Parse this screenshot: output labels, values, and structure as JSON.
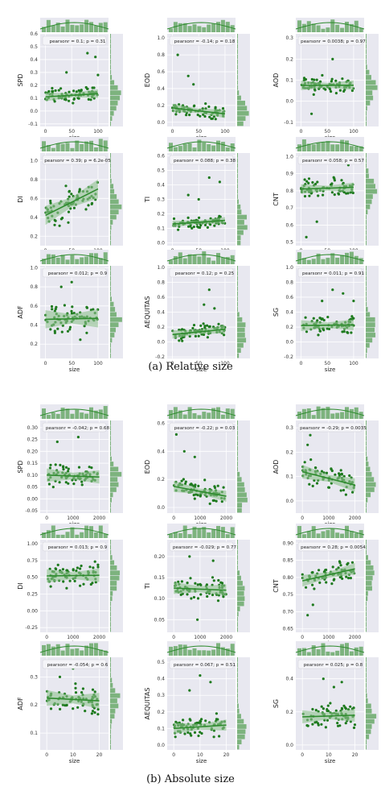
{
  "captions": {
    "a": "(a) Relative size",
    "b": "(b) Absolute size"
  },
  "colors": {
    "panel_bg": "#e8e8f0",
    "grid": "#ffffff",
    "point": "#1e7a1e",
    "line": "#2e8b2e",
    "band": "#90c290",
    "hist": "#6aa96a"
  },
  "chart_data": [
    {
      "type": "scatter",
      "group": "a",
      "ylabel": "SPD",
      "xlabel": "size",
      "legend": "pearsonr = 0.1; p = 0.31",
      "xlim": [
        -10,
        120
      ],
      "ylim": [
        -0.12,
        0.6
      ],
      "xticks": [
        0,
        50,
        100
      ],
      "yticks": [
        -0.1,
        0.0,
        0.1,
        0.2,
        0.3,
        0.4,
        0.5,
        0.6
      ],
      "ytick_labels": [
        "-0.1",
        "0.0",
        "0.1",
        "0.2",
        "0.3",
        "0.4",
        "0.5",
        "0.6"
      ],
      "fit": [
        0.11,
        0.135
      ],
      "ymean": 0.12,
      "yspread": 0.06,
      "outliers": [
        [
          80,
          0.45
        ],
        [
          95,
          0.42
        ],
        [
          40,
          0.3
        ],
        [
          100,
          0.28
        ]
      ]
    },
    {
      "type": "scatter",
      "group": "a",
      "ylabel": "EOD",
      "xlabel": "size",
      "legend": "pearsonr = -0.14; p = 0.18",
      "xlim": [
        -10,
        120
      ],
      "ylim": [
        -0.05,
        1.05
      ],
      "xticks": [
        0,
        50,
        100
      ],
      "yticks": [
        0.0,
        0.2,
        0.4,
        0.6,
        0.8,
        1.0
      ],
      "ytick_labels": [
        "0.0",
        "0.2",
        "0.4",
        "0.6",
        "0.8",
        "1.0"
      ],
      "fit": [
        0.17,
        0.1
      ],
      "ymean": 0.13,
      "yspread": 0.09,
      "outliers": [
        [
          5,
          1.0
        ],
        [
          10,
          0.8
        ],
        [
          30,
          0.55
        ],
        [
          40,
          0.45
        ]
      ]
    },
    {
      "type": "scatter",
      "group": "a",
      "ylabel": "AOD",
      "xlabel": "size",
      "legend": "pearsonr = 0.0038; p = 0.97",
      "xlim": [
        -10,
        120
      ],
      "ylim": [
        -0.12,
        0.32
      ],
      "xticks": [
        0,
        50,
        100
      ],
      "yticks": [
        -0.1,
        0.0,
        0.1,
        0.2,
        0.3
      ],
      "ytick_labels": [
        "-0.1",
        "0.0",
        "0.1",
        "0.2",
        "0.3"
      ],
      "fit": [
        0.075,
        0.076
      ],
      "ymean": 0.075,
      "yspread": 0.04,
      "outliers": [
        [
          60,
          0.2
        ],
        [
          20,
          -0.06
        ]
      ]
    },
    {
      "type": "scatter",
      "group": "a",
      "ylabel": "DI",
      "xlabel": "size",
      "legend": "pearsonr = 0.39; p = 6.2e-05",
      "xlim": [
        -10,
        120
      ],
      "ylim": [
        0.1,
        1.08
      ],
      "xticks": [
        0,
        50,
        100
      ],
      "yticks": [
        0.2,
        0.4,
        0.6,
        0.8,
        1.0
      ],
      "ytick_labels": [
        "0.2",
        "0.4",
        "0.6",
        "0.8",
        "1.0"
      ],
      "fit": [
        0.42,
        0.7
      ],
      "ymean": 0.56,
      "yspread": 0.18,
      "outliers": [
        [
          60,
          1.0
        ],
        [
          80,
          1.0
        ],
        [
          90,
          0.98
        ]
      ]
    },
    {
      "type": "scatter",
      "group": "a",
      "ylabel": "TI",
      "xlabel": "size",
      "legend": "pearsonr = 0.088; p = 0.38",
      "xlim": [
        -10,
        120
      ],
      "ylim": [
        -0.02,
        0.62
      ],
      "xticks": [
        0,
        50,
        100
      ],
      "yticks": [
        0.0,
        0.1,
        0.2,
        0.3,
        0.4,
        0.5,
        0.6
      ],
      "ytick_labels": [
        "0.0",
        "0.1",
        "0.2",
        "0.3",
        "0.4",
        "0.5",
        "0.6"
      ],
      "fit": [
        0.13,
        0.155
      ],
      "ymean": 0.14,
      "yspread": 0.04,
      "outliers": [
        [
          70,
          0.45
        ],
        [
          90,
          0.42
        ],
        [
          30,
          0.33
        ],
        [
          50,
          0.3
        ]
      ]
    },
    {
      "type": "scatter",
      "group": "a",
      "ylabel": "CNT",
      "xlabel": "size",
      "legend": "pearsonr = 0.058; p = 0.57",
      "xlim": [
        -10,
        120
      ],
      "ylim": [
        0.48,
        1.02
      ],
      "xticks": [
        0,
        50,
        100
      ],
      "yticks": [
        0.5,
        0.6,
        0.7,
        0.8,
        0.9,
        1.0
      ],
      "ytick_labels": [
        "0.5",
        "0.6",
        "0.7",
        "0.8",
        "0.9",
        "1.0"
      ],
      "fit": [
        0.81,
        0.82
      ],
      "ymean": 0.815,
      "yspread": 0.05,
      "outliers": [
        [
          10,
          0.53
        ],
        [
          30,
          0.62
        ],
        [
          90,
          0.95
        ]
      ]
    },
    {
      "type": "scatter",
      "group": "a",
      "ylabel": "ADF",
      "xlabel": "size",
      "legend": "pearsonr = 0.012; p = 0.9",
      "xlim": [
        -10,
        120
      ],
      "ylim": [
        0.05,
        1.02
      ],
      "xticks": [
        0,
        50,
        100
      ],
      "yticks": [
        0.2,
        0.4,
        0.6,
        0.8,
        1.0
      ],
      "ytick_labels": [
        "0.2",
        "0.4",
        "0.6",
        "0.8",
        "1.0"
      ],
      "fit": [
        0.46,
        0.47
      ],
      "ymean": 0.47,
      "yspread": 0.17,
      "outliers": [
        [
          50,
          0.85
        ],
        [
          30,
          0.8
        ]
      ]
    },
    {
      "type": "scatter",
      "group": "a",
      "ylabel": "AEQUITAS",
      "xlabel": "size",
      "legend": "pearsonr = 0.12; p = 0.25",
      "xlim": [
        -10,
        120
      ],
      "ylim": [
        -0.22,
        1.02
      ],
      "xticks": [
        0,
        50,
        100
      ],
      "yticks": [
        -0.2,
        0.0,
        0.2,
        0.4,
        0.6,
        0.8,
        1.0
      ],
      "ytick_labels": [
        "-0.2",
        "0.0",
        "0.2",
        "0.4",
        "0.6",
        "0.8",
        "1.0"
      ],
      "fit": [
        0.1,
        0.17
      ],
      "ymean": 0.13,
      "yspread": 0.1,
      "outliers": [
        [
          70,
          0.7
        ],
        [
          60,
          0.5
        ],
        [
          80,
          0.45
        ]
      ]
    },
    {
      "type": "scatter",
      "group": "a",
      "ylabel": "SG",
      "xlabel": "size",
      "legend": "pearsonr = 0.011; p = 0.91",
      "xlim": [
        -10,
        120
      ],
      "ylim": [
        -0.22,
        1.02
      ],
      "xticks": [
        0,
        50,
        100
      ],
      "yticks": [
        -0.2,
        0.0,
        0.2,
        0.4,
        0.6,
        0.8,
        1.0
      ],
      "ytick_labels": [
        "-0.2",
        "0.0",
        "0.2",
        "0.4",
        "0.6",
        "0.8",
        "1.0"
      ],
      "fit": [
        0.22,
        0.23
      ],
      "ymean": 0.22,
      "yspread": 0.13,
      "outliers": [
        [
          60,
          0.7
        ],
        [
          80,
          0.65
        ],
        [
          40,
          0.55
        ],
        [
          100,
          0.55
        ]
      ]
    },
    {
      "type": "scatter",
      "group": "b",
      "ylabel": "SPD",
      "xlabel": "size",
      "legend": "pearsonr = -0.042; p = 0.68",
      "xlim": [
        -250,
        2350
      ],
      "ylim": [
        -0.06,
        0.33
      ],
      "xticks": [
        0,
        1000,
        2000
      ],
      "yticks": [
        -0.05,
        0.0,
        0.05,
        0.1,
        0.15,
        0.2,
        0.25,
        0.3
      ],
      "ytick_labels": [
        "-0.05",
        "0.00",
        "0.05",
        "0.10",
        "0.15",
        "0.20",
        "0.25",
        "0.30"
      ],
      "fit": [
        0.1,
        0.092
      ],
      "ymean": 0.095,
      "yspread": 0.05,
      "outliers": [
        [
          1200,
          0.26
        ],
        [
          400,
          0.24
        ]
      ]
    },
    {
      "type": "scatter",
      "group": "b",
      "ylabel": "EOD",
      "xlabel": "size",
      "legend": "pearsonr = -0.22; p = 0.03",
      "xlim": [
        -250,
        2350
      ],
      "ylim": [
        -0.04,
        0.62
      ],
      "xticks": [
        0,
        1000,
        2000
      ],
      "yticks": [
        0.0,
        0.2,
        0.4,
        0.6
      ],
      "ytick_labels": [
        "0.0",
        "0.2",
        "0.4",
        "0.6"
      ],
      "fit": [
        0.15,
        0.08
      ],
      "ymean": 0.11,
      "yspread": 0.07,
      "outliers": [
        [
          100,
          0.52
        ],
        [
          400,
          0.4
        ],
        [
          800,
          0.36
        ]
      ]
    },
    {
      "type": "scatter",
      "group": "b",
      "ylabel": "AOD",
      "xlabel": "size",
      "legend": "pearsonr = -0.29; p = 0.0035",
      "xlim": [
        -250,
        2350
      ],
      "ylim": [
        -0.05,
        0.33
      ],
      "xticks": [
        0,
        1000,
        2000
      ],
      "yticks": [
        0.0,
        0.1,
        0.2,
        0.3
      ],
      "ytick_labels": [
        "0.0",
        "0.1",
        "0.2",
        "0.3"
      ],
      "fit": [
        0.12,
        0.065
      ],
      "ymean": 0.095,
      "yspread": 0.05,
      "outliers": [
        [
          100,
          0.3
        ],
        [
          300,
          0.27
        ],
        [
          200,
          0.23
        ]
      ]
    },
    {
      "type": "scatter",
      "group": "b",
      "ylabel": "DI",
      "xlabel": "size",
      "legend": "pearsonr = 0.013; p = 0.9",
      "xlim": [
        -250,
        2350
      ],
      "ylim": [
        -0.32,
        1.06
      ],
      "xticks": [
        0,
        1000,
        2000
      ],
      "yticks": [
        -0.25,
        0.0,
        0.25,
        0.5,
        0.75,
        1.0
      ],
      "ytick_labels": [
        "-0.25",
        "0.00",
        "0.25",
        "0.50",
        "0.75",
        "1.00"
      ],
      "fit": [
        0.52,
        0.53
      ],
      "ymean": 0.53,
      "yspread": 0.18,
      "outliers": [
        [
          500,
          1.0
        ],
        [
          900,
          0.99
        ],
        [
          1400,
          1.0
        ],
        [
          1800,
          0.98
        ]
      ]
    },
    {
      "type": "scatter",
      "group": "b",
      "ylabel": "TI",
      "xlabel": "size",
      "legend": "pearsonr = -0.029; p = 0.77",
      "xlim": [
        -250,
        2350
      ],
      "ylim": [
        0.02,
        0.24
      ],
      "xticks": [
        0,
        1000,
        2000
      ],
      "yticks": [
        0.05,
        0.1,
        0.15,
        0.2
      ],
      "ytick_labels": [
        "0.05",
        "0.10",
        "0.15",
        "0.20"
      ],
      "fit": [
        0.125,
        0.12
      ],
      "ymean": 0.122,
      "yspread": 0.025,
      "outliers": [
        [
          600,
          0.2
        ],
        [
          1500,
          0.19
        ],
        [
          900,
          0.05
        ]
      ]
    },
    {
      "type": "scatter",
      "group": "b",
      "ylabel": "CNT",
      "xlabel": "size",
      "legend": "pearsonr = 0.28; p = 0.0054",
      "xlim": [
        -250,
        2350
      ],
      "ylim": [
        0.64,
        0.91
      ],
      "xticks": [
        0,
        1000,
        2000
      ],
      "yticks": [
        0.65,
        0.7,
        0.75,
        0.8,
        0.85,
        0.9
      ],
      "ytick_labels": [
        "0.65",
        "0.70",
        "0.75",
        "0.80",
        "0.85",
        "0.90"
      ],
      "fit": [
        0.79,
        0.825
      ],
      "ymean": 0.81,
      "yspread": 0.03,
      "outliers": [
        [
          200,
          0.69
        ],
        [
          400,
          0.72
        ]
      ]
    },
    {
      "type": "scatter",
      "group": "b",
      "ylabel": "ADF",
      "xlabel": "size",
      "legend": "pearsonr = -0.054; p = 0.6",
      "xlim": [
        -2.5,
        23.5
      ],
      "ylim": [
        0.04,
        0.37
      ],
      "xticks": [
        0,
        10,
        20
      ],
      "yticks": [
        0.1,
        0.2,
        0.3
      ],
      "ytick_labels": [
        "0.1",
        "0.2",
        "0.3"
      ],
      "fit": [
        0.225,
        0.215
      ],
      "ymean": 0.22,
      "yspread": 0.05,
      "outliers": [
        [
          10,
          0.33
        ],
        [
          5,
          0.3
        ]
      ]
    },
    {
      "type": "scatter",
      "group": "b",
      "ylabel": "AEQUITAS",
      "xlabel": "size",
      "legend": "pearsonr = 0.067; p = 0.51",
      "xlim": [
        -2.5,
        23.5
      ],
      "ylim": [
        -0.03,
        0.53
      ],
      "xticks": [
        0,
        10,
        20
      ],
      "yticks": [
        0.0,
        0.1,
        0.2,
        0.3,
        0.4,
        0.5
      ],
      "ytick_labels": [
        "0.0",
        "0.1",
        "0.2",
        "0.3",
        "0.4",
        "0.5"
      ],
      "fit": [
        0.1,
        0.12
      ],
      "ymean": 0.11,
      "yspread": 0.06,
      "outliers": [
        [
          10,
          0.42
        ],
        [
          14,
          0.38
        ],
        [
          6,
          0.33
        ]
      ]
    },
    {
      "type": "scatter",
      "group": "b",
      "ylabel": "SG",
      "xlabel": "size",
      "legend": "pearsonr = 0.025; p = 0.8",
      "xlim": [
        -2.5,
        23.5
      ],
      "ylim": [
        -0.03,
        0.53
      ],
      "xticks": [
        0,
        10,
        20
      ],
      "yticks": [
        0.0,
        0.2,
        0.4
      ],
      "ytick_labels": [
        "0.0",
        "0.2",
        "0.4"
      ],
      "fit": [
        0.17,
        0.18
      ],
      "ymean": 0.175,
      "yspread": 0.07,
      "outliers": [
        [
          8,
          0.4
        ],
        [
          15,
          0.38
        ],
        [
          12,
          0.35
        ]
      ]
    }
  ]
}
